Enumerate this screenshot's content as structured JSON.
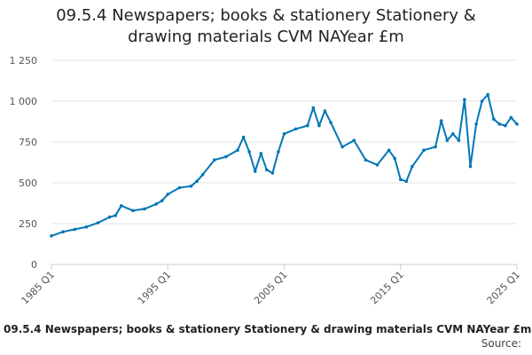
{
  "header": {
    "title": "09.5.4 Newspapers; books & stationery Stationery & drawing materials CVM NAYear £m"
  },
  "footer": {
    "caption": "09.5.4 Newspapers; books & stationery Stationery & drawing materials CVM NAYear £m",
    "source": "Source:"
  },
  "colors": {
    "line": "#0077b6",
    "grid": "#e6e6e6",
    "axis": "#cccccc"
  },
  "chart_data": {
    "type": "line",
    "title": "09.5.4 Newspapers; books & stationery Stationery & drawing materials CVM NAYear £m",
    "xlabel": "",
    "ylabel": "",
    "ylim": [
      0,
      1250
    ],
    "yticks": [
      0,
      250,
      500,
      750,
      1000,
      1250
    ],
    "ytick_labels": [
      "0",
      "250",
      "500",
      "750",
      "1 000",
      "1 250"
    ],
    "xticks": [
      "1985 Q1",
      "1995 Q1",
      "2005 Q1",
      "2015 Q1",
      "2025 Q1"
    ],
    "grid": true,
    "legend": "none",
    "series": [
      {
        "x": [
          "1985 Q1",
          "1986 Q1",
          "1987 Q1",
          "1988 Q1",
          "1989 Q1",
          "1990 Q1",
          "1990 Q3",
          "1991 Q1",
          "1992 Q1",
          "1993 Q1",
          "1994 Q1",
          "1994 Q3",
          "1995 Q1",
          "1996 Q1",
          "1997 Q1",
          "1997 Q3",
          "1998 Q1",
          "1999 Q1",
          "2000 Q1",
          "2001 Q1",
          "2001 Q3",
          "2002 Q1",
          "2002 Q3",
          "2003 Q1",
          "2003 Q3",
          "2004 Q1",
          "2004 Q3",
          "2005 Q1",
          "2006 Q1",
          "2007 Q1",
          "2007 Q3",
          "2008 Q1",
          "2008 Q3",
          "2009 Q1",
          "2010 Q1",
          "2011 Q1",
          "2012 Q1",
          "2013 Q1",
          "2014 Q1",
          "2014 Q3",
          "2015 Q1",
          "2015 Q3",
          "2016 Q1",
          "2017 Q1",
          "2018 Q1",
          "2018 Q3",
          "2019 Q1",
          "2019 Q3",
          "2020 Q1",
          "2020 Q3",
          "2021 Q1",
          "2021 Q3",
          "2022 Q1",
          "2022 Q3",
          "2023 Q1",
          "2023 Q3",
          "2024 Q1",
          "2024 Q3",
          "2025 Q1"
        ],
        "values": [
          175,
          200,
          215,
          230,
          255,
          290,
          300,
          360,
          330,
          340,
          370,
          390,
          430,
          470,
          480,
          510,
          550,
          640,
          660,
          700,
          780,
          690,
          570,
          680,
          580,
          560,
          690,
          800,
          830,
          850,
          960,
          850,
          940,
          870,
          720,
          760,
          640,
          610,
          700,
          650,
          520,
          510,
          600,
          700,
          720,
          880,
          760,
          800,
          760,
          1010,
          600,
          860,
          1000,
          1040,
          890,
          860,
          850,
          900,
          860
        ]
      }
    ]
  }
}
